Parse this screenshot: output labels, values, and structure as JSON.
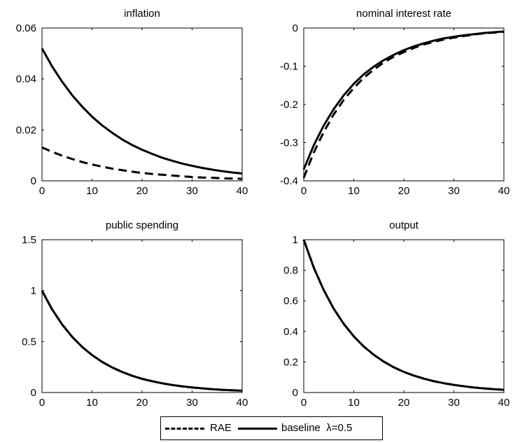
{
  "chart_data": [
    {
      "type": "line",
      "title": "inflation",
      "xlabel": "",
      "ylabel": "",
      "xlim": [
        0,
        40
      ],
      "ylim": [
        0,
        0.06
      ],
      "xticks": [
        "0",
        "10",
        "20",
        "30",
        "40"
      ],
      "yticks": [
        "0",
        "0.02",
        "0.04",
        "0.06"
      ],
      "grid": false,
      "series": [
        {
          "name": "RAE",
          "style": "dashed",
          "x": [
            0,
            2,
            4,
            6,
            8,
            10,
            12,
            14,
            16,
            18,
            20,
            22,
            24,
            26,
            28,
            30,
            32,
            34,
            36,
            38,
            40
          ],
          "y": [
            0.0131,
            0.0114,
            0.0099,
            0.0086,
            0.0074,
            0.0064,
            0.0056,
            0.0048,
            0.0042,
            0.0036,
            0.0031,
            0.0027,
            0.0024,
            0.0021,
            0.0018,
            0.0015,
            0.0013,
            0.0012,
            0.001,
            0.0009,
            0.0008
          ]
        },
        {
          "name": "baseline λ=0.5",
          "style": "solid",
          "x": [
            0,
            2,
            4,
            6,
            8,
            10,
            12,
            14,
            16,
            18,
            20,
            22,
            24,
            26,
            28,
            30,
            32,
            34,
            36,
            38,
            40
          ],
          "y": [
            0.052,
            0.045,
            0.039,
            0.0337,
            0.0292,
            0.0252,
            0.0218,
            0.0189,
            0.0163,
            0.0141,
            0.0122,
            0.0106,
            0.0091,
            0.0079,
            0.0068,
            0.0059,
            0.0051,
            0.0044,
            0.0038,
            0.0033,
            0.0029
          ]
        }
      ]
    },
    {
      "type": "line",
      "title": "nominal interest rate",
      "xlabel": "",
      "ylabel": "",
      "xlim": [
        0,
        40
      ],
      "ylim": [
        -0.4,
        0
      ],
      "xticks": [
        "0",
        "10",
        "20",
        "30",
        "40"
      ],
      "yticks": [
        "-0.4",
        "-0.3",
        "-0.2",
        "-0.1",
        "0"
      ],
      "grid": false,
      "series": [
        {
          "name": "RAE",
          "style": "dashed",
          "x": [
            0,
            2,
            4,
            6,
            8,
            10,
            12,
            14,
            16,
            18,
            20,
            22,
            24,
            26,
            28,
            30,
            32,
            34,
            36,
            38,
            40
          ],
          "y": [
            -0.392,
            -0.326,
            -0.272,
            -0.226,
            -0.188,
            -0.157,
            -0.13,
            -0.109,
            -0.09,
            -0.075,
            -0.063,
            -0.052,
            -0.043,
            -0.036,
            -0.03,
            -0.025,
            -0.021,
            -0.017,
            -0.014,
            -0.012,
            -0.01
          ]
        },
        {
          "name": "baseline λ=0.5",
          "style": "solid",
          "x": [
            0,
            2,
            4,
            6,
            8,
            10,
            12,
            14,
            16,
            18,
            20,
            22,
            24,
            26,
            28,
            30,
            32,
            34,
            36,
            38,
            40
          ],
          "y": [
            -0.37,
            -0.307,
            -0.255,
            -0.212,
            -0.176,
            -0.146,
            -0.121,
            -0.101,
            -0.084,
            -0.07,
            -0.058,
            -0.048,
            -0.04,
            -0.033,
            -0.027,
            -0.023,
            -0.019,
            -0.016,
            -0.013,
            -0.011,
            -0.009
          ]
        }
      ]
    },
    {
      "type": "line",
      "title": "public spending",
      "xlabel": "",
      "ylabel": "",
      "xlim": [
        0,
        40
      ],
      "ylim": [
        0,
        1.5
      ],
      "xticks": [
        "0",
        "10",
        "20",
        "30",
        "40"
      ],
      "yticks": [
        "0",
        "0.5",
        "1",
        "1.5"
      ],
      "grid": false,
      "series": [
        {
          "name": "RAE",
          "style": "dashed",
          "x": [
            0,
            2,
            4,
            6,
            8,
            10,
            12,
            14,
            16,
            18,
            20,
            22,
            24,
            26,
            28,
            30,
            32,
            34,
            36,
            38,
            40
          ],
          "y": [
            1.0,
            0.818,
            0.67,
            0.548,
            0.449,
            0.368,
            0.301,
            0.247,
            0.202,
            0.165,
            0.135,
            0.111,
            0.091,
            0.074,
            0.061,
            0.05,
            0.041,
            0.033,
            0.027,
            0.022,
            0.018
          ]
        },
        {
          "name": "baseline λ=0.5",
          "style": "solid",
          "x": [
            0,
            2,
            4,
            6,
            8,
            10,
            12,
            14,
            16,
            18,
            20,
            22,
            24,
            26,
            28,
            30,
            32,
            34,
            36,
            38,
            40
          ],
          "y": [
            1.0,
            0.818,
            0.67,
            0.548,
            0.449,
            0.368,
            0.301,
            0.247,
            0.202,
            0.165,
            0.135,
            0.111,
            0.091,
            0.074,
            0.061,
            0.05,
            0.041,
            0.033,
            0.027,
            0.022,
            0.018
          ]
        }
      ]
    },
    {
      "type": "line",
      "title": "output",
      "xlabel": "",
      "ylabel": "",
      "xlim": [
        0,
        40
      ],
      "ylim": [
        0,
        1
      ],
      "xticks": [
        "0",
        "10",
        "20",
        "30",
        "40"
      ],
      "yticks": [
        "0",
        "0.2",
        "0.4",
        "0.6",
        "0.8",
        "1"
      ],
      "grid": false,
      "series": [
        {
          "name": "RAE",
          "style": "dashed",
          "x": [
            0,
            2,
            4,
            6,
            8,
            10,
            12,
            14,
            16,
            18,
            20,
            22,
            24,
            26,
            28,
            30,
            32,
            34,
            36,
            38,
            40
          ],
          "y": [
            1.0,
            0.818,
            0.67,
            0.548,
            0.449,
            0.368,
            0.301,
            0.247,
            0.202,
            0.165,
            0.135,
            0.111,
            0.091,
            0.074,
            0.061,
            0.05,
            0.041,
            0.033,
            0.027,
            0.022,
            0.018
          ]
        },
        {
          "name": "baseline λ=0.5",
          "style": "solid",
          "x": [
            0,
            2,
            4,
            6,
            8,
            10,
            12,
            14,
            16,
            18,
            20,
            22,
            24,
            26,
            28,
            30,
            32,
            34,
            36,
            38,
            40
          ],
          "y": [
            1.0,
            0.818,
            0.67,
            0.548,
            0.449,
            0.368,
            0.301,
            0.247,
            0.202,
            0.165,
            0.135,
            0.111,
            0.091,
            0.074,
            0.061,
            0.05,
            0.041,
            0.033,
            0.027,
            0.022,
            0.018
          ]
        }
      ]
    }
  ],
  "legend": {
    "placement": "bottom-center",
    "items": [
      {
        "label": "RAE",
        "style": "dashed"
      },
      {
        "label": "baseline  λ=0.5",
        "style": "solid"
      }
    ]
  }
}
